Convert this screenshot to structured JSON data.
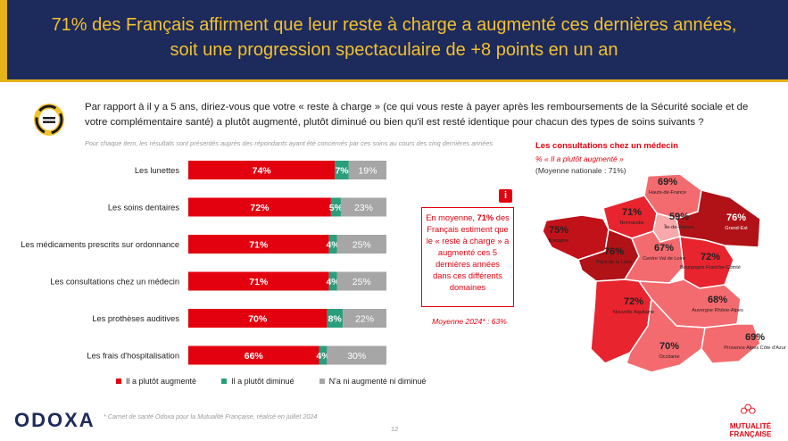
{
  "header": {
    "title_line1": "71% des Français affirment que leur reste à charge a augmenté ces dernières années,",
    "title_line2": "soit une progression spectaculaire de +8 points en un an"
  },
  "question": "Par rapport à il y a 5 ans, diriez-vous que votre « reste à charge » (ce qui vous reste à payer après les remboursements de la Sécurité sociale et de votre complémentaire santé) a plutôt augmenté, plutôt diminué ou bien qu'il est resté identique pour chacun des types de soins suivants ?",
  "note": "Pour chaque item, les résultats sont présentés auprès des répondants ayant été concernés par ces soins au cours des cinq dernières années",
  "chart_data": {
    "type": "bar",
    "stacked": true,
    "orientation": "horizontal",
    "categories": [
      "Les lunettes",
      "Les soins dentaires",
      "Les médicaments prescrits sur ordonnance",
      "Les consultations chez un médecin",
      "Les prothèses auditives",
      "Les frais d'hospitalisation"
    ],
    "series": [
      {
        "name": "Il a plutôt augmenté",
        "color": "#e3000f",
        "values": [
          74,
          72,
          71,
          71,
          70,
          66
        ]
      },
      {
        "name": "Il a plutôt diminué",
        "color": "#2a9d7c",
        "values": [
          7,
          5,
          4,
          4,
          8,
          4
        ]
      },
      {
        "name": "N'a ni augmenté ni diminué",
        "color": "#a6a6a6",
        "values": [
          19,
          23,
          25,
          25,
          22,
          30
        ]
      }
    ],
    "xlim": [
      0,
      100
    ],
    "legend": "bottom"
  },
  "callout": {
    "icon": "i",
    "text_before": "En moyenne, ",
    "text_bold": "71%",
    "text_after": " des Français estiment que le « reste à charge » a augmenté ces 5 dernières années dans ces différents domaines",
    "avg2024": "Moyenne 2024* : 63%"
  },
  "map": {
    "title": "Les consultations chez un médecin",
    "subtitle": "% « Il a plutôt augmenté »",
    "national_avg": "(Moyenne nationale : 71%)",
    "regions": [
      {
        "name": "Hauts-de-France",
        "value": "69%"
      },
      {
        "name": "Normandie",
        "value": "71%"
      },
      {
        "name": "Île-de-France",
        "value": "59%"
      },
      {
        "name": "Grand-Est",
        "value": "76%"
      },
      {
        "name": "Bretagne",
        "value": "75%"
      },
      {
        "name": "Pays de la Loire",
        "value": "76%"
      },
      {
        "name": "Centre Val de Loire",
        "value": "67%"
      },
      {
        "name": "Bourgogne Franche-Comté",
        "value": "72%"
      },
      {
        "name": "Nouvelle Aquitaine",
        "value": "72%"
      },
      {
        "name": "Auvergne Rhône-Alpes",
        "value": "68%"
      },
      {
        "name": "Occitanie",
        "value": "70%"
      },
      {
        "name": "Provence Alpes Côte d'Azur",
        "value": "69%"
      }
    ]
  },
  "footer": {
    "brand": "ODOXA",
    "note": "* Carnet de santé Odoxa pour la Mutualité Française, réalisé en juillet 2024",
    "page": "12",
    "partner_line1": "MUTUALITÉ",
    "partner_line2": "FRANÇAISE"
  }
}
